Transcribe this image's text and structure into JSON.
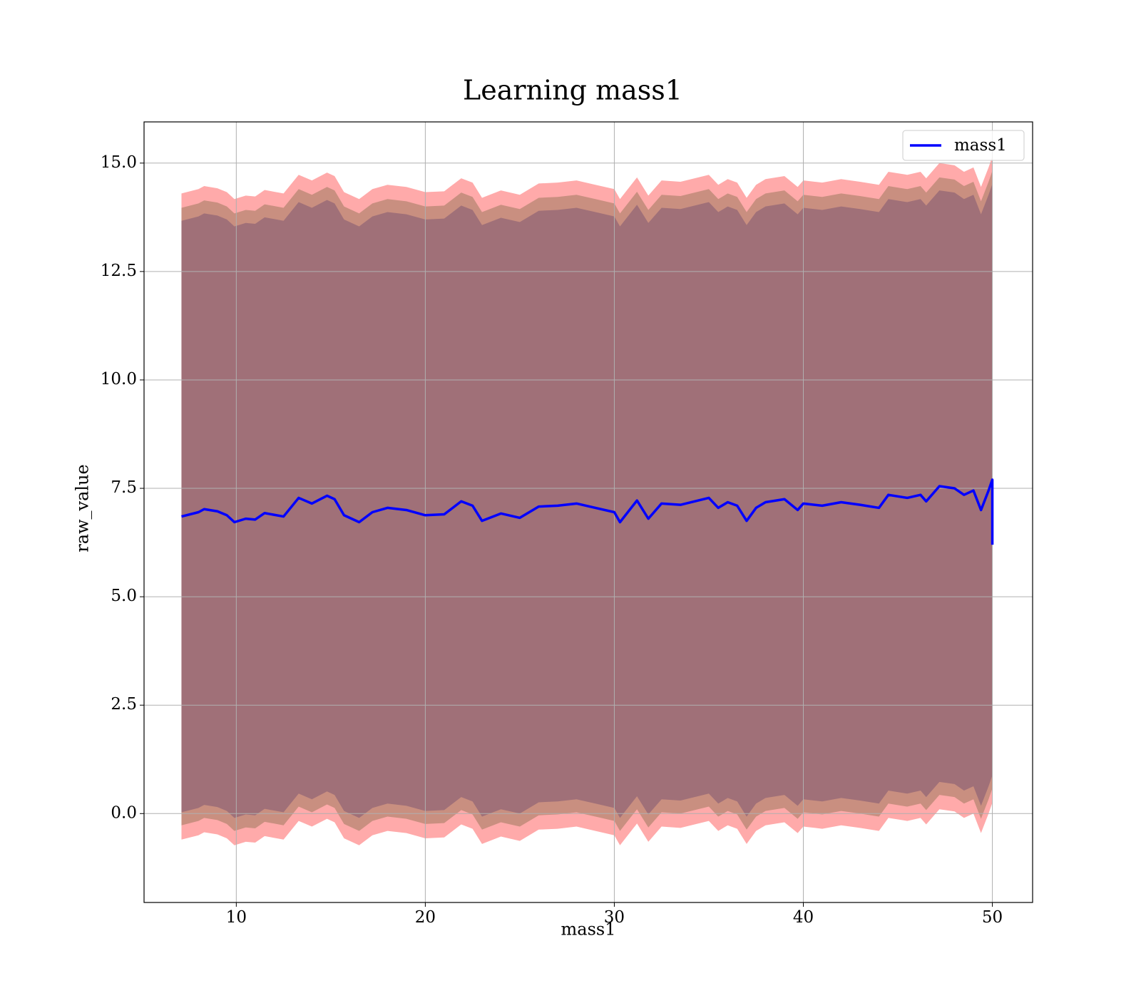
{
  "chart_data": {
    "type": "line",
    "title": "Learning mass1",
    "xlabel": "mass1",
    "ylabel": "raw_value",
    "x": [
      7.1,
      8,
      8.3,
      9,
      9.5,
      9.9,
      10.5,
      11,
      11.5,
      12.5,
      13.3,
      14,
      14.8,
      15.2,
      15.7,
      16.5,
      17.2,
      18,
      19,
      20,
      21,
      21.9,
      22.5,
      23,
      24,
      25,
      26,
      27,
      28,
      29,
      30,
      30.3,
      31.2,
      31.8,
      32.5,
      33.5,
      35,
      35.5,
      36,
      36.5,
      37,
      37.5,
      38,
      39,
      39.7,
      40,
      41,
      42,
      43,
      44,
      44.5,
      45.5,
      46.2,
      46.5,
      47.2,
      48,
      48.5,
      49,
      49.4,
      49.8,
      50,
      50
    ],
    "series": [
      {
        "name": "mass1",
        "color": "#0000ff",
        "values": [
          6.85,
          6.95,
          7.02,
          6.97,
          6.88,
          6.72,
          6.8,
          6.78,
          6.93,
          6.85,
          7.28,
          7.15,
          7.33,
          7.25,
          6.88,
          6.72,
          6.95,
          7.05,
          7.0,
          6.88,
          6.9,
          7.2,
          7.1,
          6.75,
          6.92,
          6.82,
          7.08,
          7.1,
          7.15,
          7.05,
          6.95,
          6.72,
          7.22,
          6.8,
          7.15,
          7.12,
          7.28,
          7.05,
          7.18,
          7.1,
          6.75,
          7.05,
          7.18,
          7.25,
          7.0,
          7.15,
          7.1,
          7.18,
          7.12,
          7.05,
          7.35,
          7.28,
          7.35,
          7.2,
          7.55,
          7.5,
          7.35,
          7.45,
          7.0,
          7.45,
          7.7,
          6.2
        ]
      }
    ],
    "bands": [
      {
        "color": "#ffaaaa",
        "spread": 7.45
      },
      {
        "color": "#c98f80",
        "spread": 7.12
      },
      {
        "color": "#a07078",
        "spread": 6.82
      }
    ],
    "xlim": [
      5.12,
      52.13
    ],
    "ylim": [
      -2.05,
      15.95
    ],
    "xticks": [
      10,
      20,
      30,
      40,
      50
    ],
    "yticks": [
      {
        "value": 0,
        "label": "0.0"
      },
      2.5,
      {
        "value": 5,
        "label": "5.0"
      },
      7.5,
      {
        "value": 10,
        "label": "10.0"
      },
      12.5,
      {
        "value": 15,
        "label": "15.0"
      }
    ],
    "grid": true,
    "legend": "upper right"
  }
}
